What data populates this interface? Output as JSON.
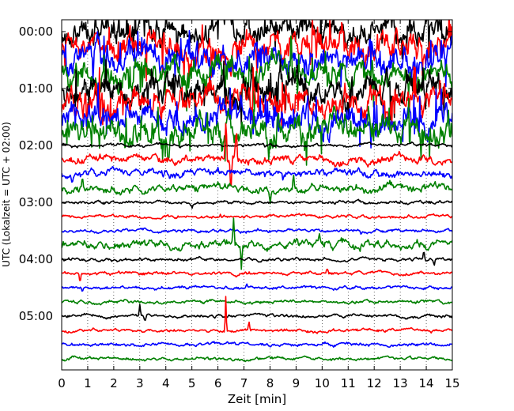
{
  "chart_data": {
    "type": "line",
    "title": "",
    "xlabel": "Zeit  [min]",
    "ylabel": "UTC (Lokalzeit = UTC + 02:00)",
    "xlim": [
      0,
      15
    ],
    "x_ticks": [
      "0",
      "1",
      "2",
      "3",
      "4",
      "5",
      "6",
      "7",
      "8",
      "9",
      "10",
      "11",
      "12",
      "13",
      "14",
      "15"
    ],
    "ylim_minutes": [
      0,
      360
    ],
    "y_ticks": [
      "00:00",
      "01:00",
      "02:00",
      "03:00",
      "04:00",
      "05:00"
    ],
    "grid": "vertical dotted lines at every minute",
    "color_cycle": [
      "#000000",
      "#ff0000",
      "#0000ff",
      "#008000"
    ],
    "trace_offsets_utc": [
      "00:00",
      "00:15",
      "00:30",
      "00:45",
      "01:00",
      "01:15",
      "01:30",
      "01:45",
      "02:00",
      "02:15",
      "02:30",
      "02:45",
      "03:00",
      "03:15",
      "03:30",
      "03:45",
      "04:00",
      "04:15",
      "04:30",
      "04:45",
      "05:00",
      "05:15",
      "05:30",
      "05:45"
    ],
    "series": [
      {
        "color": "#000000",
        "offset": "00:00",
        "amplitude": "very high",
        "spikes": [
          [
            1.3,
            30
          ],
          [
            3.8,
            -25
          ],
          [
            6.4,
            30
          ]
        ]
      },
      {
        "color": "#ff0000",
        "offset": "00:15",
        "amplitude": "very high",
        "spikes": [
          [
            5.4,
            40
          ],
          [
            6.5,
            -45
          ],
          [
            10.3,
            35
          ]
        ]
      },
      {
        "color": "#0000ff",
        "offset": "00:30",
        "amplitude": "very high",
        "spikes": [
          [
            1.2,
            -40
          ],
          [
            5.2,
            35
          ],
          [
            9.8,
            -30
          ]
        ]
      },
      {
        "color": "#008000",
        "offset": "00:45",
        "amplitude": "very high",
        "spikes": [
          [
            1.6,
            30
          ],
          [
            7.4,
            -40
          ],
          [
            8.8,
            35
          ]
        ]
      },
      {
        "color": "#000000",
        "offset": "01:00",
        "amplitude": "very high",
        "spikes": [
          [
            4.3,
            -30
          ],
          [
            7.3,
            30
          ]
        ]
      },
      {
        "color": "#ff0000",
        "offset": "01:15",
        "amplitude": "very high",
        "spikes": [
          [
            2.3,
            35
          ],
          [
            7.3,
            -50
          ],
          [
            14.7,
            30
          ]
        ]
      },
      {
        "color": "#0000ff",
        "offset": "01:30",
        "amplitude": "very high",
        "spikes": [
          [
            6.9,
            40
          ],
          [
            10.0,
            -35
          ],
          [
            12.0,
            35
          ]
        ]
      },
      {
        "color": "#008000",
        "offset": "01:45",
        "amplitude": "very high",
        "spikes": [
          [
            4.1,
            -40
          ],
          [
            8.3,
            45
          ],
          [
            11.8,
            40
          ]
        ]
      },
      {
        "color": "#000000",
        "offset": "02:00",
        "amplitude": "low",
        "spikes": [
          [
            7.8,
            -4
          ],
          [
            9.8,
            4
          ]
        ]
      },
      {
        "color": "#ff0000",
        "offset": "02:15",
        "amplitude": "medium",
        "spikes": [
          [
            6.3,
            80
          ],
          [
            6.5,
            -60
          ],
          [
            6.7,
            60
          ]
        ]
      },
      {
        "color": "#0000ff",
        "offset": "02:30",
        "amplitude": "medium",
        "spikes": [
          [
            0.4,
            -20
          ],
          [
            8.5,
            -15
          ]
        ]
      },
      {
        "color": "#008000",
        "offset": "02:45",
        "amplitude": "medium",
        "spikes": [
          [
            0.8,
            20
          ],
          [
            8.0,
            -25
          ],
          [
            8.9,
            25
          ]
        ]
      },
      {
        "color": "#000000",
        "offset": "03:00",
        "amplitude": "low",
        "spikes": [
          [
            5.0,
            -8
          ]
        ]
      },
      {
        "color": "#ff0000",
        "offset": "03:15",
        "amplitude": "low",
        "spikes": [
          [
            6.1,
            6
          ]
        ]
      },
      {
        "color": "#0000ff",
        "offset": "03:30",
        "amplitude": "low",
        "spikes": [
          [
            11.5,
            -5
          ]
        ]
      },
      {
        "color": "#008000",
        "offset": "03:45",
        "amplitude": "medium",
        "spikes": [
          [
            6.6,
            40
          ],
          [
            6.9,
            -35
          ],
          [
            9.9,
            10
          ]
        ]
      },
      {
        "color": "#000000",
        "offset": "04:00",
        "amplitude": "low",
        "spikes": [
          [
            13.9,
            18
          ],
          [
            14.3,
            -12
          ]
        ]
      },
      {
        "color": "#ff0000",
        "offset": "04:15",
        "amplitude": "low",
        "spikes": [
          [
            0.7,
            -12
          ],
          [
            10.2,
            8
          ]
        ]
      },
      {
        "color": "#0000ff",
        "offset": "04:30",
        "amplitude": "low",
        "spikes": [
          [
            0.8,
            -8
          ],
          [
            7.1,
            6
          ]
        ]
      },
      {
        "color": "#008000",
        "offset": "04:45",
        "amplitude": "low",
        "spikes": []
      },
      {
        "color": "#000000",
        "offset": "05:00",
        "amplitude": "low",
        "spikes": [
          [
            3.0,
            14
          ],
          [
            3.2,
            -14
          ]
        ]
      },
      {
        "color": "#ff0000",
        "offset": "05:15",
        "amplitude": "low",
        "spikes": [
          [
            6.3,
            50
          ],
          [
            7.2,
            12
          ]
        ]
      },
      {
        "color": "#0000ff",
        "offset": "05:30",
        "amplitude": "low",
        "spikes": []
      },
      {
        "color": "#008000",
        "offset": "05:45",
        "amplitude": "low",
        "spikes": []
      }
    ]
  }
}
